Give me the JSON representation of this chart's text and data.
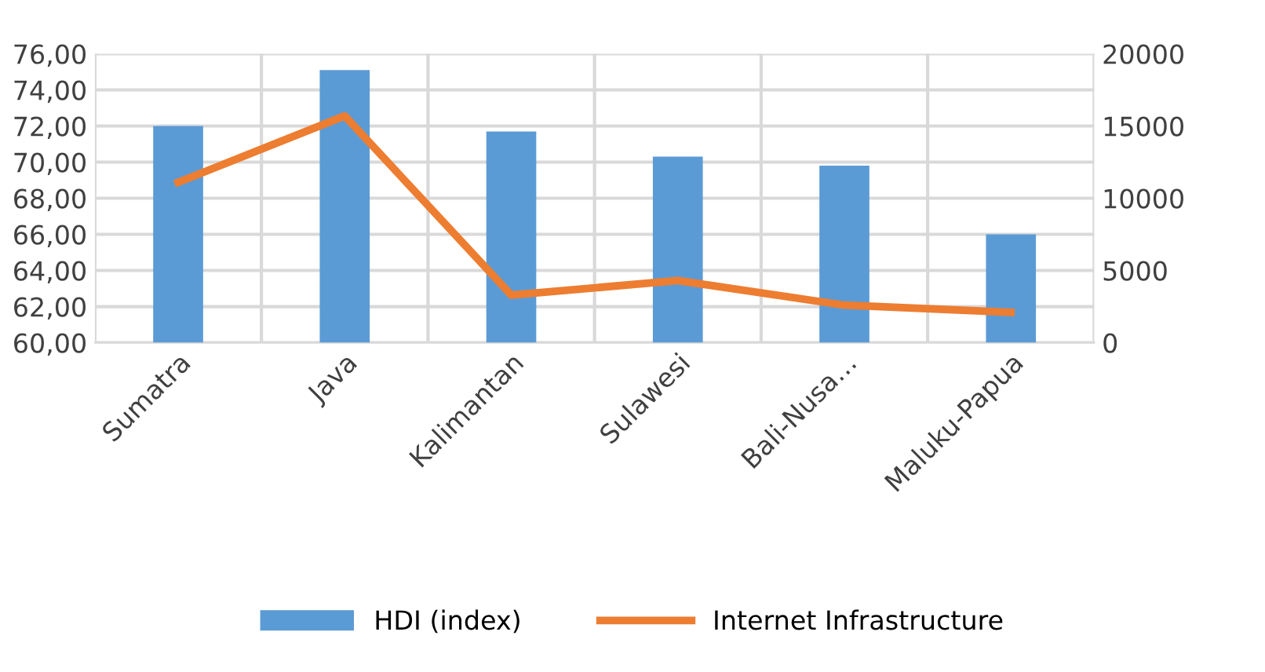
{
  "chart_data": {
    "type": "bar",
    "categories": [
      "Sumatra",
      "Java",
      "Kalimantan",
      "Sulawesi",
      "Bali-Nusa…",
      "Maluku-Papua"
    ],
    "series": [
      {
        "name": "HDI (index)",
        "color": "#5b9bd5",
        "values": [
          72.0,
          75.1,
          71.7,
          70.3,
          69.8,
          66.0
        ]
      },
      {
        "name": "Internet Infrastructure",
        "type": "line",
        "axis": "y2",
        "color": "#ed7d31",
        "values": [
          11100,
          15700,
          3300,
          4300,
          2600,
          2100
        ]
      }
    ],
    "ylim": [
      60,
      76
    ],
    "yticks": [
      {
        "value": 60,
        "label": "60,00"
      },
      {
        "value": 62,
        "label": "62,00"
      },
      {
        "value": 64,
        "label": "64,00"
      },
      {
        "value": 66,
        "label": "66,00"
      },
      {
        "value": 68,
        "label": "68,00"
      },
      {
        "value": 70,
        "label": "70,00"
      },
      {
        "value": 72,
        "label": "72,00"
      },
      {
        "value": 74,
        "label": "74,00"
      },
      {
        "value": 76,
        "label": "76,00"
      }
    ],
    "y2lim": [
      0,
      20000
    ],
    "y2ticks": [
      0,
      5000,
      10000,
      15000,
      20000
    ],
    "grid": true,
    "legend": "bottom",
    "marker": "none"
  }
}
